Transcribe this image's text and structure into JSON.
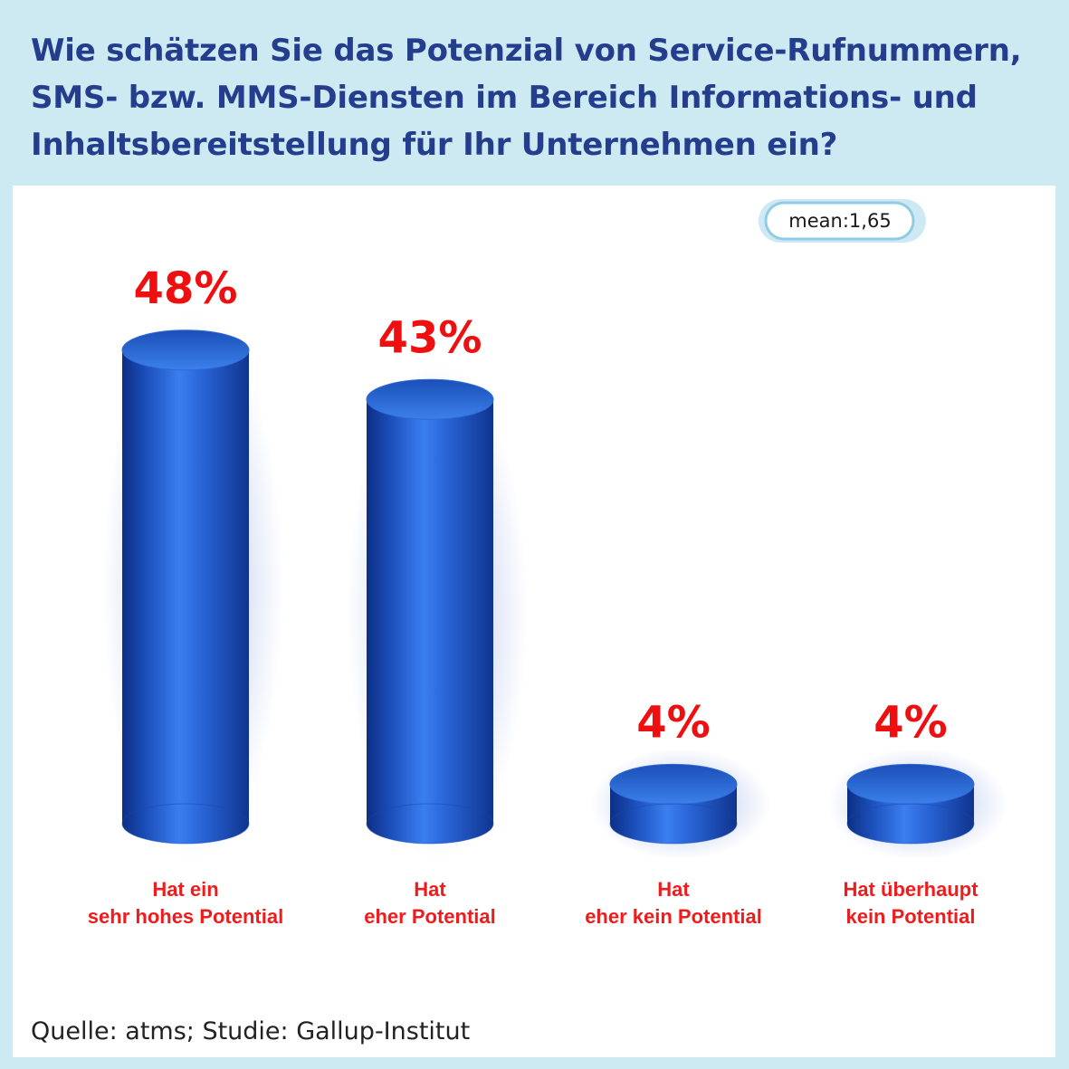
{
  "title": "Wie schätzen Sie das Potenzial von Service-Rufnummern, SMS- bzw. MMS-Diensten im Bereich Informations- und Inhaltsbereitstellung für Ihr Unternehmen ein?",
  "mean_badge": "mean:1,65",
  "source": "Quelle: atms; Studie: Gallup-Institut",
  "colors": {
    "bar": "#1f5cc8",
    "bar_dark": "#0d2f85",
    "value_text": "#ee1010",
    "title": "#243d8c"
  },
  "chart_data": {
    "type": "bar",
    "unit": "%",
    "categories": [
      "Hat ein sehr hohes Potential",
      "Hat eher Potential",
      "Hat eher kein Potential",
      "Hat überhaupt kein Potential"
    ],
    "category_lines": [
      [
        "Hat ein",
        "sehr hohes Potential"
      ],
      [
        "Hat",
        "eher Potential"
      ],
      [
        "Hat",
        "eher kein Potential"
      ],
      [
        "Hat überhaupt",
        "kein Potential"
      ]
    ],
    "values": [
      48,
      43,
      4,
      4
    ],
    "value_labels": [
      "48%",
      "43%",
      "4%",
      "4%"
    ],
    "title": "",
    "xlabel": "",
    "ylabel": "",
    "legend": "none",
    "grid": false
  }
}
